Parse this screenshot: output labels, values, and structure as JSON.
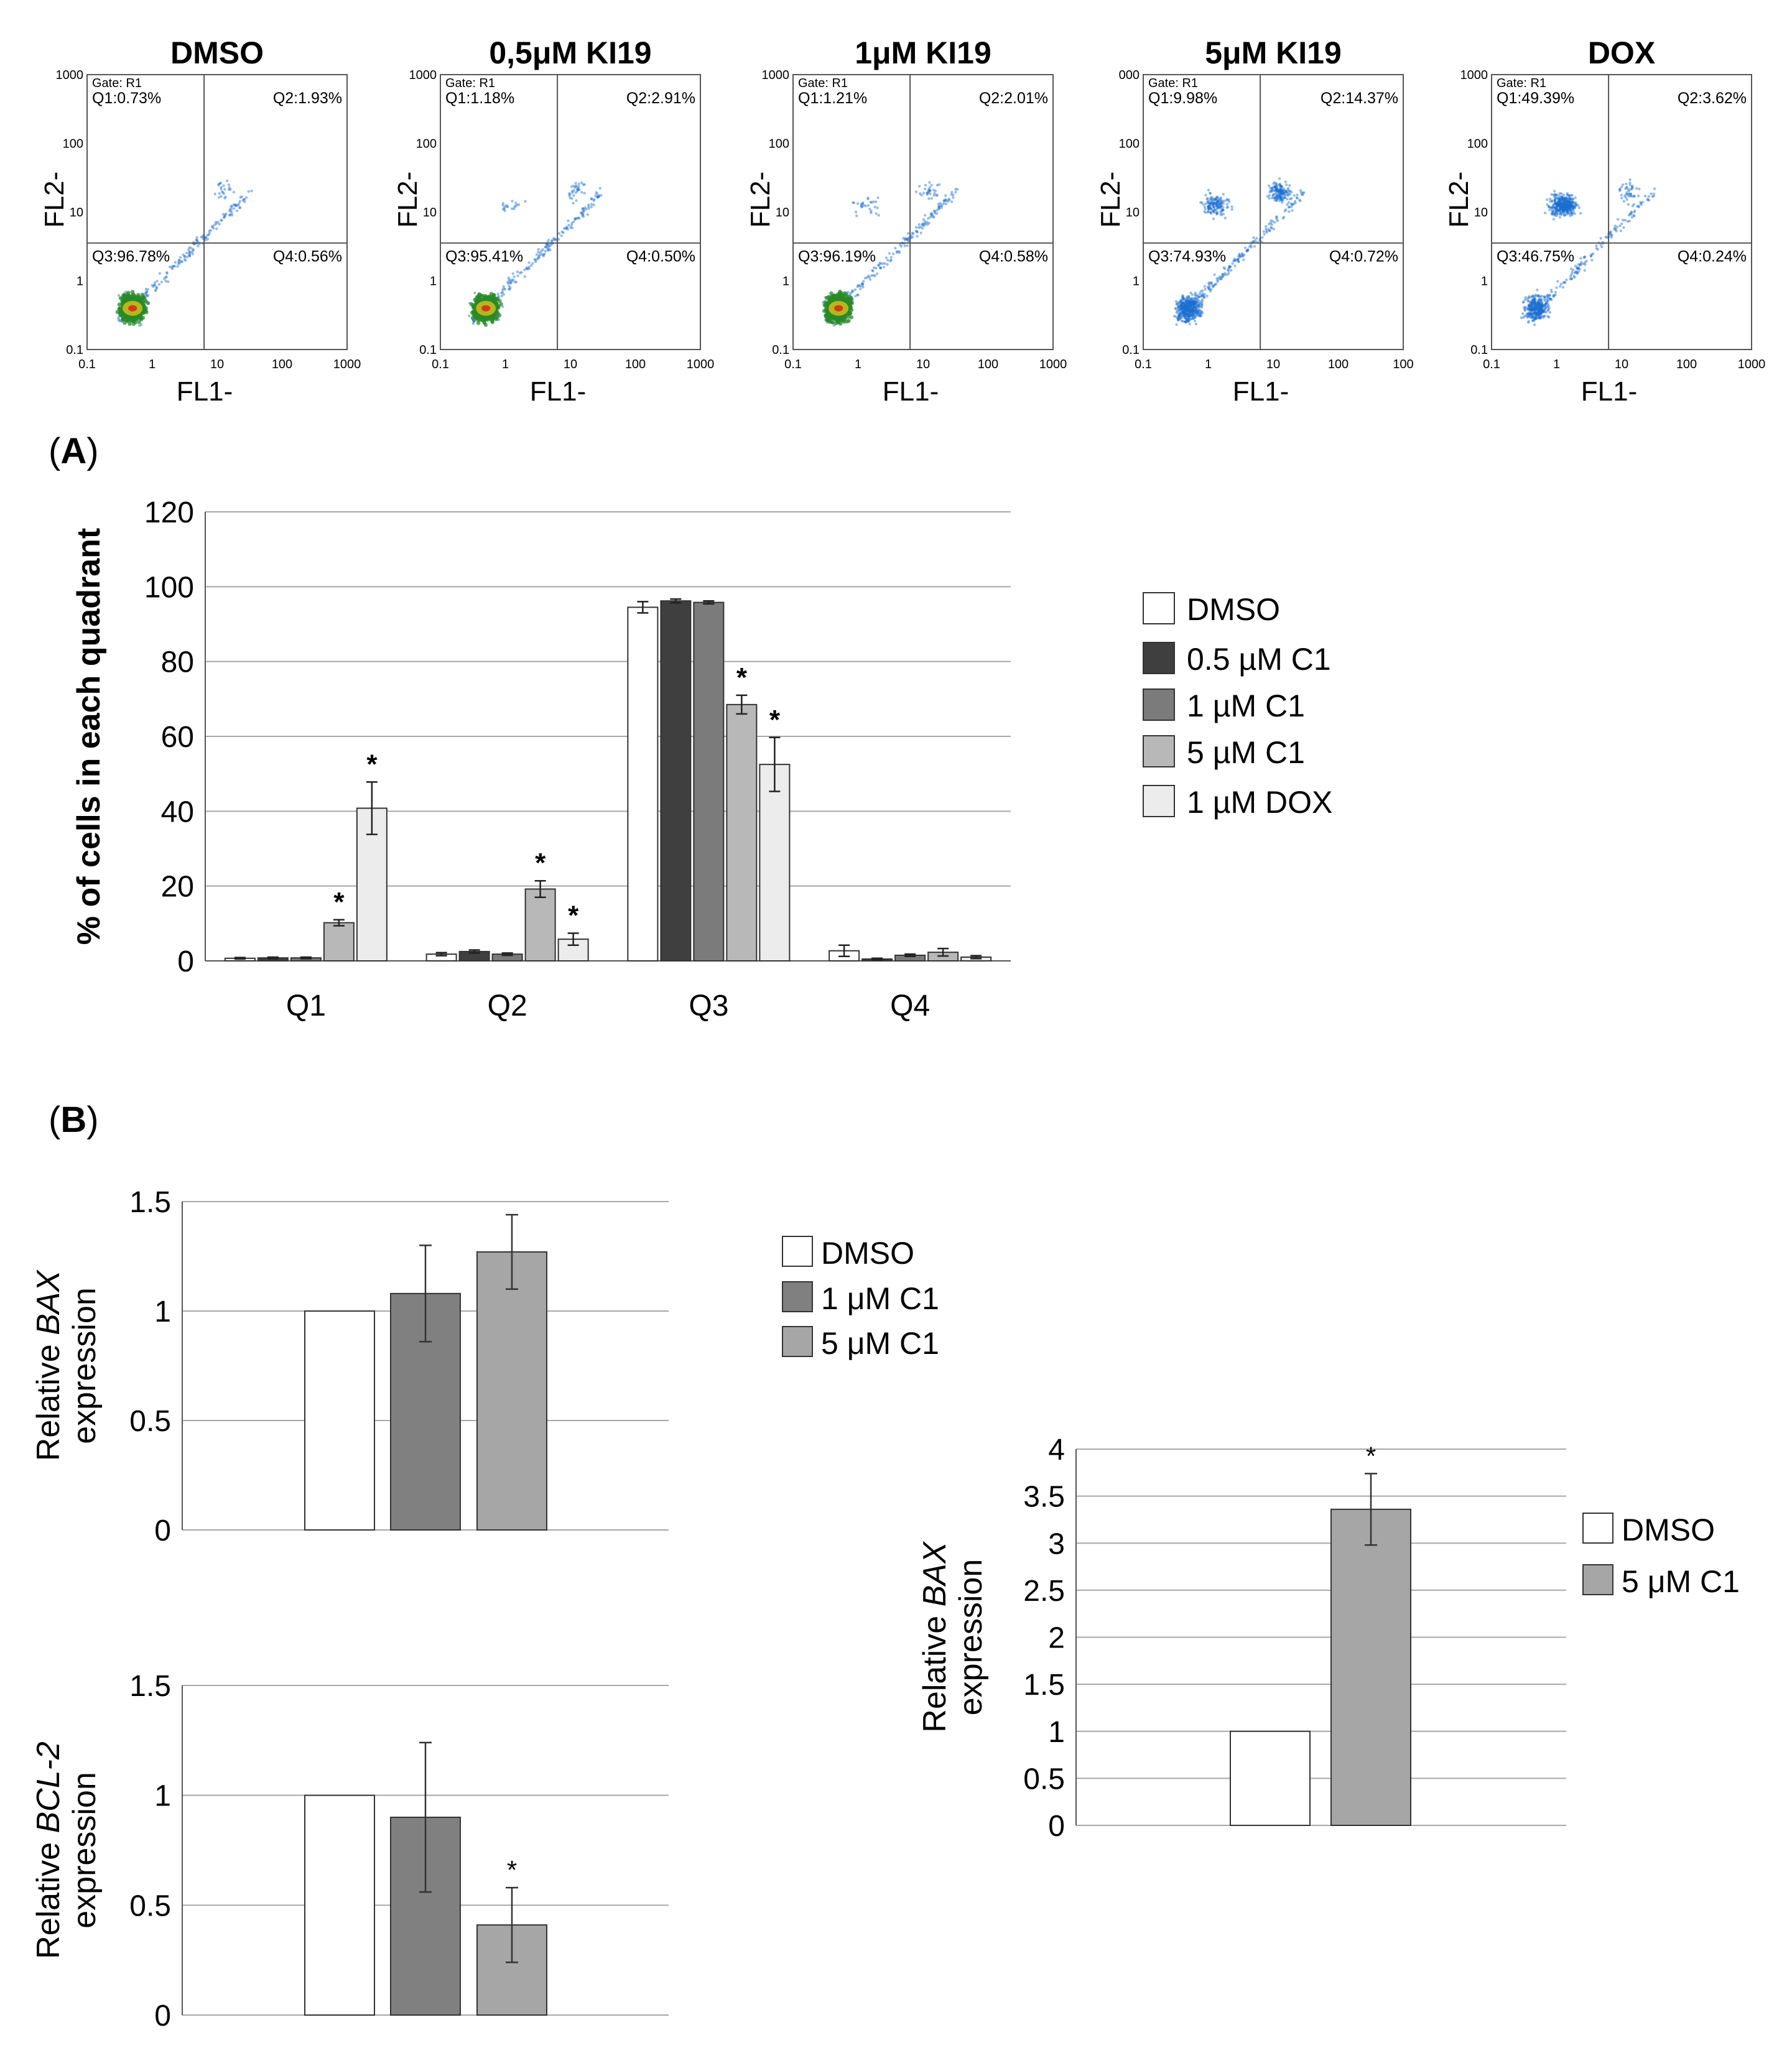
{
  "flow_panels": [
    {
      "title": "DMSO",
      "gate": "Gate: R1",
      "q1": "Q1:0.73%",
      "q2": "Q2:1.93%",
      "q3": "Q3:96.78%",
      "q4": "Q4:0.56%",
      "ylabel": "FL2-",
      "xlabel": "FL1-",
      "yticks": [
        "1000",
        "100",
        "10",
        "1",
        "0.1"
      ],
      "xticks": [
        "0.1",
        "1",
        "10",
        "100",
        "1000"
      ]
    },
    {
      "title": "0,5μM KI19",
      "gate": "Gate: R1",
      "q1": "Q1:1.18%",
      "q2": "Q2:2.91%",
      "q3": "Q3:95.41%",
      "q4": "Q4:0.50%",
      "ylabel": "FL2-",
      "xlabel": "FL1-",
      "yticks": [
        "1000",
        "100",
        "10",
        "1",
        "0.1"
      ],
      "xticks": [
        "0.1",
        "1",
        "10",
        "100",
        "1000"
      ]
    },
    {
      "title": "1μM KI19",
      "gate": "Gate: R1",
      "q1": "Q1:1.21%",
      "q2": "Q2:2.01%",
      "q3": "Q3:96.19%",
      "q4": "Q4:0.58%",
      "ylabel": "FL2-",
      "xlabel": "FL1-",
      "yticks": [
        "1000",
        "100",
        "10",
        "1",
        "0.1"
      ],
      "xticks": [
        "0.1",
        "1",
        "10",
        "100",
        "1000"
      ]
    },
    {
      "title": "5μM KI19",
      "gate": "Gate: R1",
      "q1": "Q1:9.98%",
      "q2": "Q2:14.37%",
      "q3": "Q3:74.93%",
      "q4": "Q4:0.72%",
      "ylabel": "FL2-",
      "xlabel": "FL1-",
      "yticks": [
        "000",
        "100",
        "10",
        "1",
        "0.1"
      ],
      "xticks": [
        "0.1",
        "1",
        "10",
        "100",
        "100"
      ]
    },
    {
      "title": "DOX",
      "gate": "Gate: R1",
      "q1": "Q1:49.39%",
      "q2": "Q2:3.62%",
      "q3": "Q3:46.75%",
      "q4": "Q4:0.24%",
      "ylabel": "FL2-",
      "xlabel": "FL1-",
      "yticks": [
        "1000",
        "100",
        "10",
        "1",
        "0.1"
      ],
      "xticks": [
        "0.1",
        "1",
        "10",
        "100",
        "1000"
      ]
    }
  ],
  "panel_labels": {
    "a_open": "(",
    "a": "A",
    "a_close": ")",
    "b_open": "(",
    "b": "B",
    "b_close": ")"
  },
  "chart_data": [
    {
      "type": "bar",
      "ylabel": "% of cells in each quadrant",
      "ylim": [
        0,
        120
      ],
      "yticks": [
        0,
        20,
        40,
        60,
        80,
        100,
        120
      ],
      "grid": true,
      "legend_position": "right",
      "categories": [
        "Q1",
        "Q2",
        "Q3",
        "Q4"
      ],
      "series": [
        {
          "name": "DMSO",
          "color": "#ffffff",
          "values": [
            0.7,
            1.8,
            94.5,
            2.7
          ],
          "errors": [
            0.2,
            0.4,
            1.5,
            1.5
          ],
          "stars": [
            false,
            false,
            false,
            false
          ]
        },
        {
          "name": "0.5 µM C1",
          "color": "#3f3f3f",
          "values": [
            0.8,
            2.5,
            96.2,
            0.5
          ],
          "errors": [
            0.2,
            0.4,
            0.5,
            0.2
          ],
          "stars": [
            false,
            false,
            false,
            false
          ]
        },
        {
          "name": "1 µM C1",
          "color": "#7b7b7b",
          "values": [
            0.8,
            1.8,
            95.8,
            1.5
          ],
          "errors": [
            0.2,
            0.3,
            0.4,
            0.3
          ],
          "stars": [
            false,
            false,
            false,
            false
          ]
        },
        {
          "name": "5 µM C1",
          "color": "#b8b8b8",
          "values": [
            10.2,
            19.2,
            68.5,
            2.3
          ],
          "errors": [
            0.8,
            2.2,
            2.5,
            1.0
          ],
          "stars": [
            true,
            true,
            true,
            false
          ]
        },
        {
          "name": "1 µM DOX",
          "color": "#ececec",
          "values": [
            40.8,
            5.8,
            52.5,
            1.0
          ],
          "errors": [
            7.0,
            1.6,
            7.2,
            0.4
          ],
          "stars": [
            true,
            true,
            true,
            false
          ]
        }
      ],
      "star_symbol": "*"
    },
    {
      "type": "bar",
      "ylabel_pre": "Relative ",
      "ylabel_gene": "BAX",
      "ylabel_line2": "expression",
      "ylim": [
        0,
        1.5
      ],
      "ytick_labels": [
        "0",
        "0.5",
        "1",
        "1.5"
      ],
      "grid": true,
      "legend_position": "right",
      "categories": [
        "DMSO",
        "1 μM C1",
        "5 μM C1"
      ],
      "values": [
        1.0,
        1.08,
        1.27
      ],
      "errors": [
        0,
        0.22,
        0.17
      ],
      "colors": [
        "#ffffff",
        "#808080",
        "#a6a6a6"
      ],
      "stars": [
        false,
        false,
        false
      ]
    },
    {
      "type": "bar",
      "ylabel_pre": "Relative ",
      "ylabel_gene": "BCL-2",
      "ylabel_line2": "expression",
      "ylim": [
        0,
        1.5
      ],
      "ytick_labels": [
        "0",
        "0.5",
        "1",
        "1.5"
      ],
      "grid": true,
      "legend": "none",
      "categories": [
        "DMSO",
        "1 μM C1",
        "5 μM C1"
      ],
      "values": [
        1.0,
        0.9,
        0.41
      ],
      "errors": [
        0,
        0.34,
        0.17
      ],
      "colors": [
        "#ffffff",
        "#808080",
        "#a6a6a6"
      ],
      "stars": [
        false,
        false,
        true
      ],
      "star_symbol": "*"
    },
    {
      "type": "bar",
      "ylabel_pre": "Relative ",
      "ylabel_gene": "BAX",
      "ylabel_line2": "expression",
      "ylim": [
        0,
        4
      ],
      "ytick_labels": [
        "0",
        "0.5",
        "1",
        "1.5",
        "2",
        "2.5",
        "3",
        "3.5",
        "4"
      ],
      "grid": true,
      "legend_position": "right",
      "categories": [
        "DMSO",
        "5 μM C1"
      ],
      "values": [
        1.0,
        3.36
      ],
      "errors": [
        0,
        0.38
      ],
      "colors": [
        "#ffffff",
        "#a6a6a6"
      ],
      "stars": [
        false,
        true
      ],
      "star_symbol": "*"
    }
  ]
}
